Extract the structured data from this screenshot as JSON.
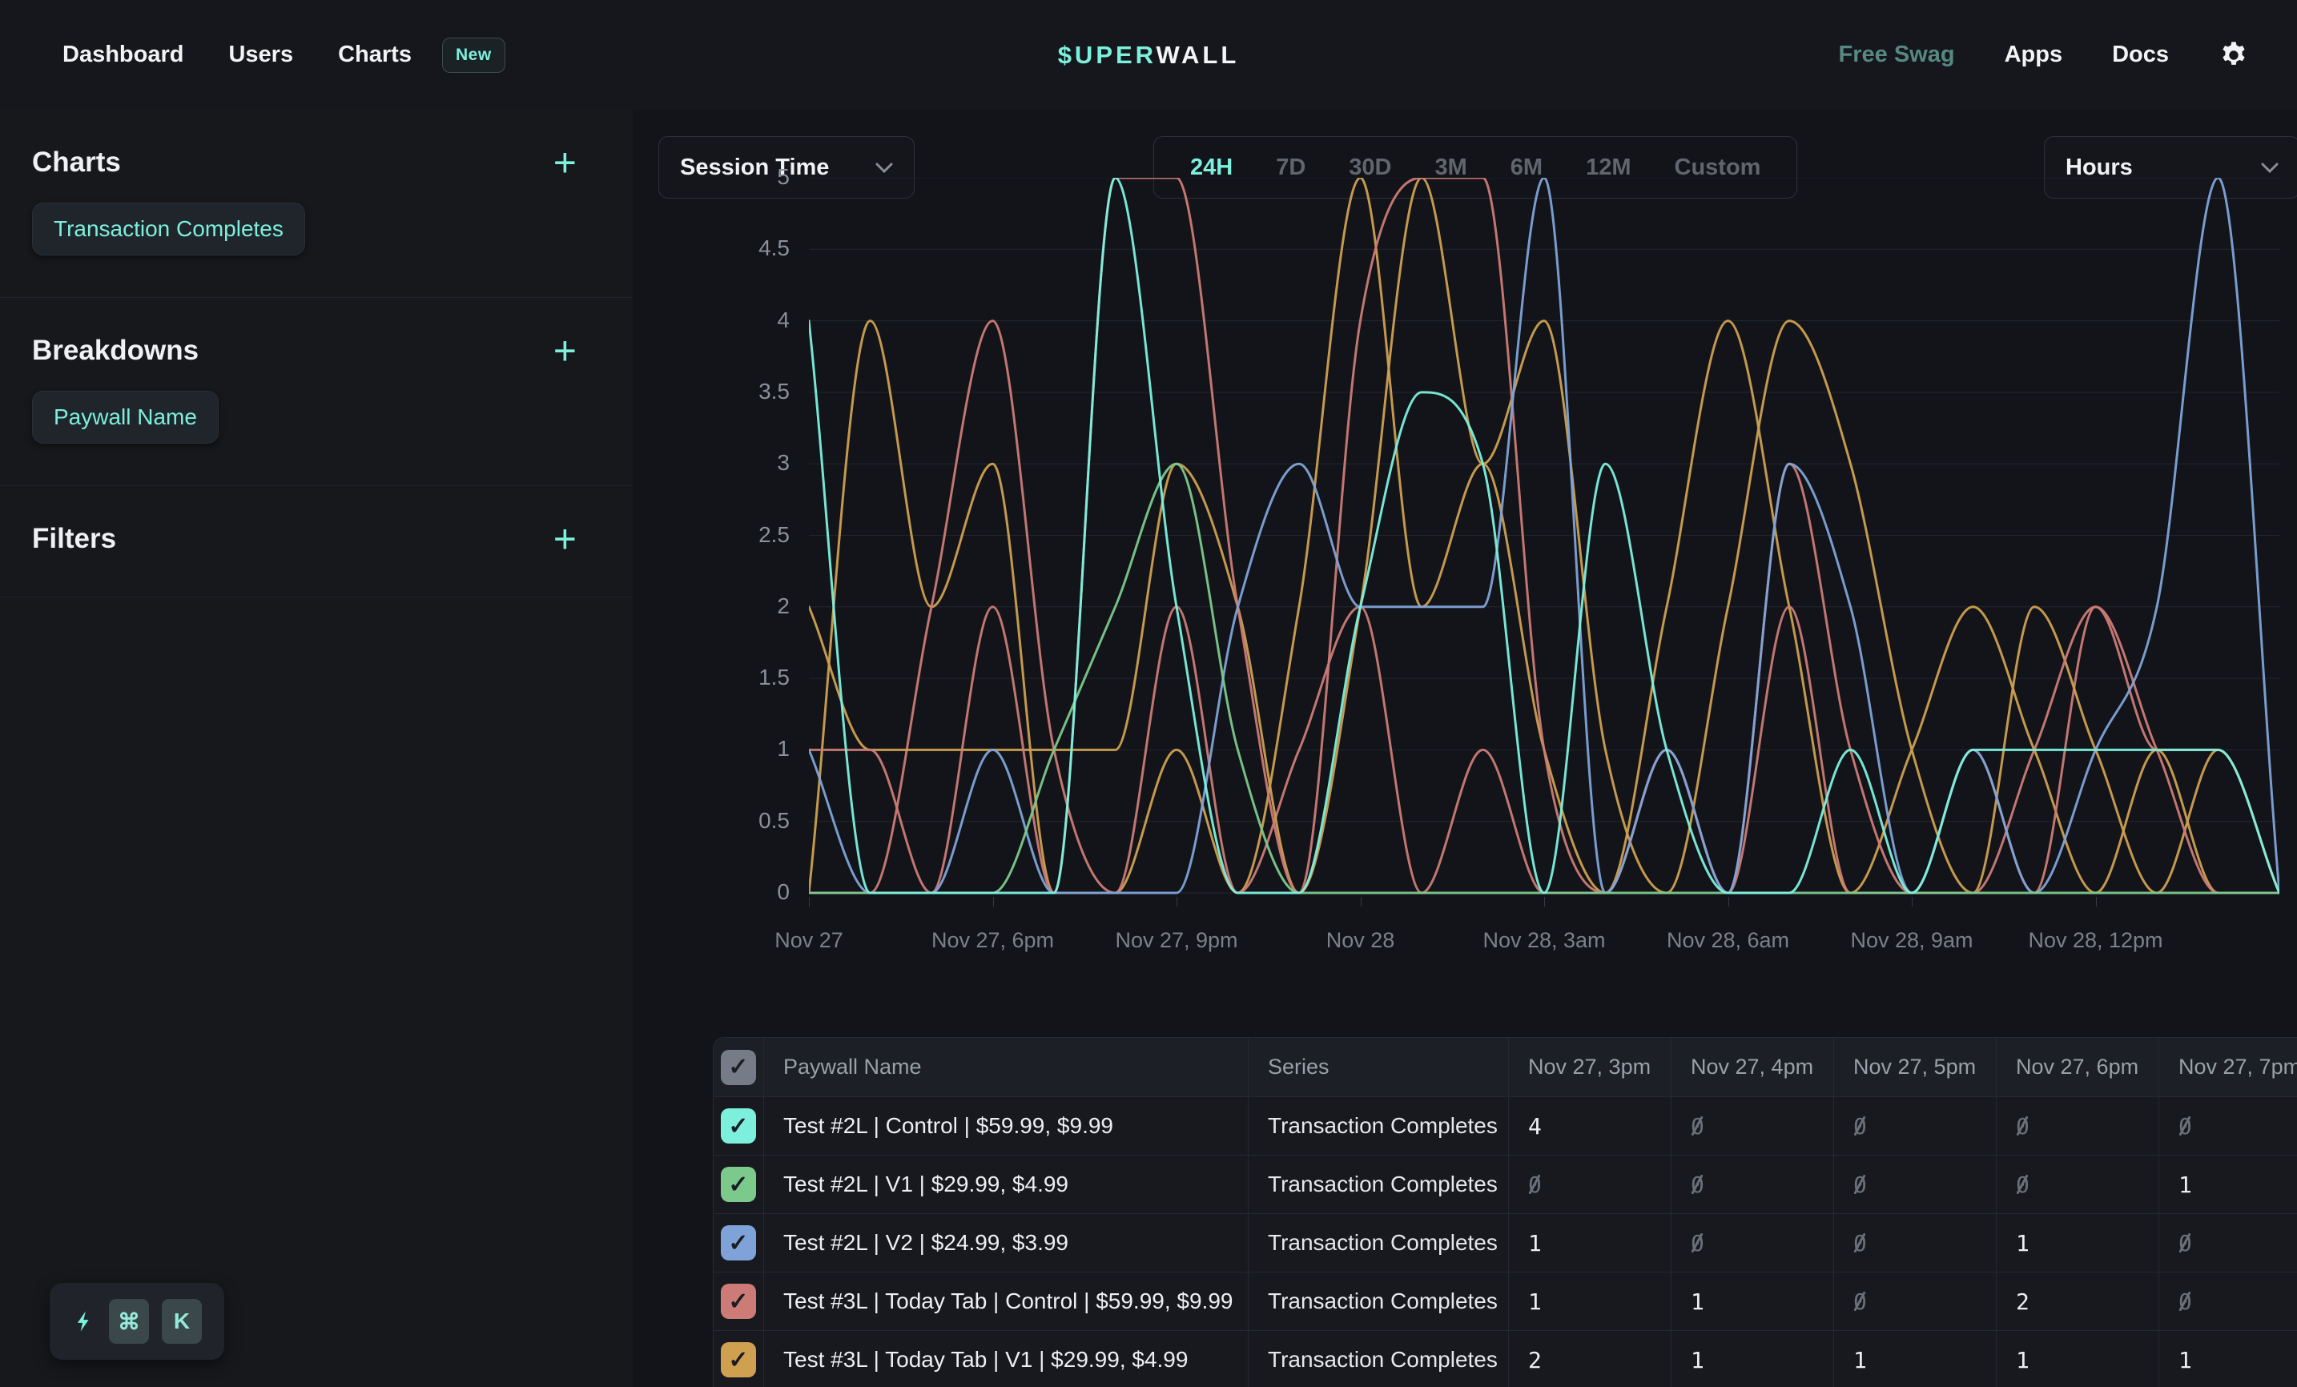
{
  "nav": {
    "items": [
      {
        "label": "Dashboard"
      },
      {
        "label": "Users"
      },
      {
        "label": "Charts"
      }
    ],
    "new_badge": "New",
    "logo": {
      "accent": "$UPER",
      "rest": "WALL"
    },
    "right_items": [
      {
        "label": "Free Swag"
      },
      {
        "label": "Apps"
      },
      {
        "label": "Docs"
      }
    ]
  },
  "sidebar": {
    "sections": [
      {
        "title": "Charts",
        "chips": [
          "Transaction Completes"
        ]
      },
      {
        "title": "Breakdowns",
        "chips": [
          "Paywall Name"
        ]
      },
      {
        "title": "Filters",
        "chips": []
      }
    ],
    "shortcut_keys": [
      "⌘",
      "K"
    ]
  },
  "controls": {
    "metric_select": "Session Time",
    "ranges": [
      "24H",
      "7D",
      "30D",
      "3M",
      "6M",
      "12M",
      "Custom"
    ],
    "active_range": "24H",
    "unit_select": "Hours"
  },
  "chart_data": {
    "type": "line",
    "title": "",
    "xlabel": "",
    "ylabel": "",
    "ylim": [
      0,
      5
    ],
    "yticks": [
      0,
      0.5,
      1,
      1.5,
      2,
      2.5,
      3,
      3.5,
      4,
      4.5,
      5
    ],
    "x_tick_labels": [
      "Nov 27",
      "Nov 27, 6pm",
      "Nov 27, 9pm",
      "Nov 28",
      "Nov 28, 3am",
      "Nov 28, 6am",
      "Nov 28, 9am",
      "Nov 28, 12pm"
    ],
    "x_hours_span": 24,
    "x_hours_per_tick": 3,
    "grid": true,
    "legend": false,
    "series": [
      {
        "name": "",
        "color": "#cfa050",
        "values": [
          0,
          4,
          2,
          3,
          0,
          0,
          1,
          0,
          2,
          5,
          2,
          3,
          1,
          0,
          2,
          4,
          2,
          0,
          1,
          2,
          1,
          0,
          1,
          0,
          0
        ]
      },
      {
        "name": "",
        "color": "#cc7b76",
        "values": [
          0,
          0,
          2,
          4,
          1,
          0,
          2,
          0,
          1,
          2,
          0,
          1,
          0,
          0,
          1,
          0,
          2,
          0,
          0,
          1,
          0,
          2,
          1,
          1,
          0
        ]
      },
      {
        "name": "Test #3L | Today Tab | V1 | $29.99, $4.99",
        "color": "#cfa050",
        "values": [
          2,
          1,
          1,
          1,
          1,
          1,
          3,
          2,
          0,
          2,
          5,
          3,
          4,
          1,
          0,
          2,
          4,
          3,
          1,
          0,
          2,
          1,
          0,
          1,
          0
        ]
      },
      {
        "name": "Test #3L | Today Tab | Control | $59.99, $9.99",
        "color": "#cc7b76",
        "values": [
          1,
          1,
          0,
          2,
          0,
          5,
          5,
          2,
          0,
          4,
          5,
          5,
          1,
          0,
          1,
          0,
          3,
          1,
          0,
          0,
          1,
          2,
          1,
          0,
          0
        ]
      },
      {
        "name": "Test #2L | V2 | $24.99, $3.99",
        "color": "#7fa3d8",
        "values": [
          1,
          0,
          0,
          1,
          0,
          0,
          0,
          2,
          3,
          2,
          2,
          2,
          5,
          0,
          1,
          0,
          3,
          2,
          0,
          1,
          0,
          1,
          2,
          5,
          0
        ]
      },
      {
        "name": "Test #2L | V1 | $29.99, $4.99",
        "color": "#7cc98c",
        "values": [
          0,
          0,
          0,
          0,
          1,
          2,
          3,
          1,
          0,
          0,
          0,
          0,
          0,
          0,
          0,
          0,
          0,
          0,
          0,
          0,
          0,
          0,
          0,
          0,
          0
        ]
      },
      {
        "name": "Test #2L | Control | $59.99, $9.99",
        "color": "#7df0dd",
        "values": [
          4,
          0,
          0,
          0,
          0,
          5,
          2,
          0,
          0,
          2,
          3.5,
          3,
          0,
          3,
          1,
          0,
          0,
          1,
          0,
          1,
          1,
          1,
          1,
          1,
          0
        ]
      }
    ]
  },
  "table": {
    "select_all_checked": true,
    "columns": [
      "Paywall Name",
      "Series",
      "Nov 27, 3pm",
      "Nov 27, 4pm",
      "Nov 27, 5pm",
      "Nov 27, 6pm",
      "Nov 27, 7pm"
    ],
    "rows": [
      {
        "checked": true,
        "color": "#7df0dd",
        "name": "Test #2L | Control | $59.99, $9.99",
        "series": "Transaction Completes",
        "values": [
          4,
          0,
          0,
          0,
          0
        ]
      },
      {
        "checked": true,
        "color": "#7cc98c",
        "name": "Test #2L | V1 | $29.99, $4.99",
        "series": "Transaction Completes",
        "values": [
          0,
          0,
          0,
          0,
          1
        ]
      },
      {
        "checked": true,
        "color": "#7fa3d8",
        "name": "Test #2L | V2 | $24.99, $3.99",
        "series": "Transaction Completes",
        "values": [
          1,
          0,
          0,
          1,
          0
        ]
      },
      {
        "checked": true,
        "color": "#cc7b76",
        "name": "Test #3L | Today Tab | Control | $59.99, $9.99",
        "series": "Transaction Completes",
        "values": [
          1,
          1,
          0,
          2,
          0
        ]
      },
      {
        "checked": true,
        "color": "#cfa050",
        "name": "Test #3L | Today Tab | V1 | $29.99, $4.99",
        "series": "Transaction Completes",
        "values": [
          2,
          1,
          1,
          1,
          1
        ]
      }
    ]
  },
  "colors": {
    "accent": "#7df0dd",
    "muted_teal": "#56897f",
    "grid": "#222630",
    "header_checkbox": "#767c87"
  }
}
